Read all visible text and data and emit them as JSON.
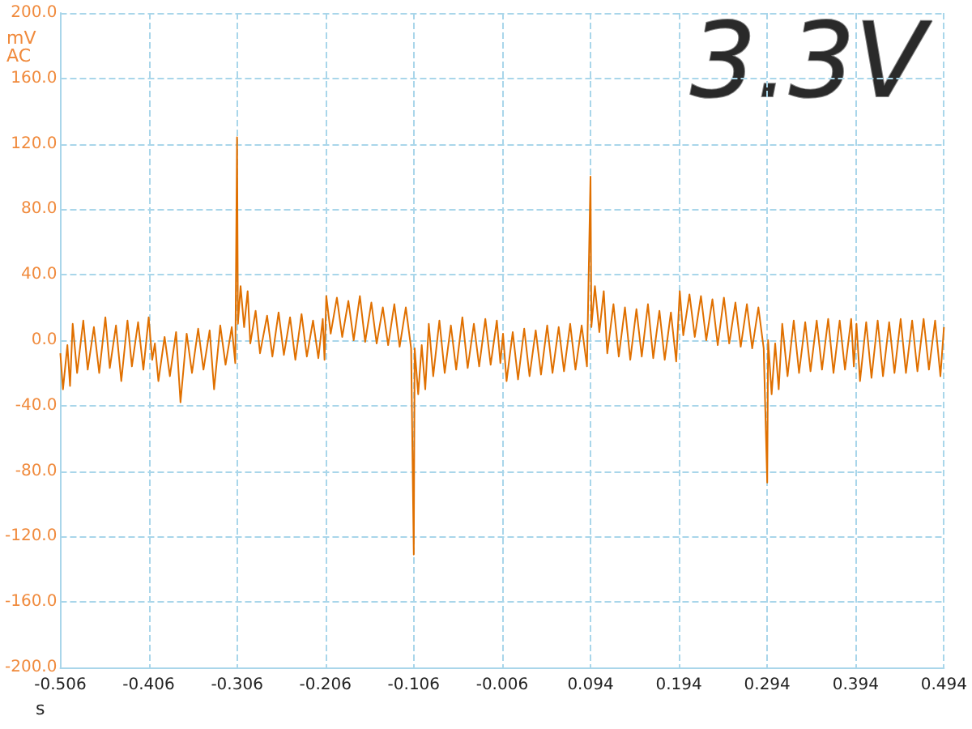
{
  "chart_data": {
    "type": "line",
    "xlabel": "s",
    "ylabel": "mV AC",
    "annotations": [
      "3.3V"
    ],
    "xlim": [
      -0.506,
      0.494
    ],
    "ylim": [
      -200,
      200
    ],
    "xticks": [
      -0.506,
      -0.406,
      -0.306,
      -0.206,
      -0.106,
      -0.006,
      0.094,
      0.194,
      0.294,
      0.394,
      0.494
    ],
    "yticks": [
      {
        "value": -200,
        "label": "-200.0"
      },
      {
        "value": -160,
        "label": "-160.0"
      },
      {
        "value": -120,
        "label": "-120.0"
      },
      {
        "value": -80,
        "label": "-80.0"
      },
      {
        "value": -40,
        "label": "-40.0"
      },
      {
        "value": 0,
        "label": "0.0"
      },
      {
        "value": 40,
        "label": "40.0"
      },
      {
        "value": 80,
        "label": "80.0"
      },
      {
        "value": 120,
        "label": "120.0"
      },
      {
        "value": 160,
        "label": "160.0"
      },
      {
        "value": 200,
        "label": "200.0"
      }
    ],
    "grid": true,
    "marker": "none",
    "line_style": "solid",
    "series": [
      {
        "color": "#e07000",
        "x": [
          -0.506,
          -0.503,
          -0.498,
          -0.495,
          -0.492,
          -0.487,
          -0.48,
          -0.475,
          -0.468,
          -0.462,
          -0.455,
          -0.45,
          -0.443,
          -0.437,
          -0.43,
          -0.425,
          -0.418,
          -0.412,
          -0.406,
          -0.402,
          -0.399,
          -0.395,
          -0.388,
          -0.382,
          -0.375,
          -0.37,
          -0.363,
          -0.357,
          -0.35,
          -0.344,
          -0.337,
          -0.332,
          -0.325,
          -0.319,
          -0.312,
          -0.308,
          -0.306,
          -0.305,
          -0.302,
          -0.298,
          -0.294,
          -0.291,
          -0.285,
          -0.28,
          -0.272,
          -0.266,
          -0.259,
          -0.253,
          -0.246,
          -0.24,
          -0.233,
          -0.227,
          -0.22,
          -0.214,
          -0.209,
          -0.207,
          -0.205,
          -0.2,
          -0.193,
          -0.187,
          -0.18,
          -0.174,
          -0.167,
          -0.161,
          -0.154,
          -0.148,
          -0.141,
          -0.135,
          -0.128,
          -0.122,
          -0.115,
          -0.109,
          -0.106,
          -0.105,
          -0.101,
          -0.097,
          -0.093,
          -0.089,
          -0.084,
          -0.077,
          -0.071,
          -0.064,
          -0.058,
          -0.051,
          -0.045,
          -0.038,
          -0.032,
          -0.025,
          -0.019,
          -0.012,
          -0.008,
          -0.005,
          -0.001,
          0.006,
          0.012,
          0.019,
          0.025,
          0.032,
          0.038,
          0.045,
          0.051,
          0.058,
          0.064,
          0.071,
          0.077,
          0.084,
          0.09,
          0.094,
          0.095,
          0.099,
          0.104,
          0.109,
          0.113,
          0.12,
          0.126,
          0.133,
          0.139,
          0.146,
          0.152,
          0.159,
          0.165,
          0.172,
          0.178,
          0.185,
          0.191,
          0.195,
          0.199,
          0.206,
          0.212,
          0.219,
          0.225,
          0.232,
          0.238,
          0.245,
          0.251,
          0.258,
          0.264,
          0.271,
          0.277,
          0.284,
          0.29,
          0.294,
          0.295,
          0.299,
          0.303,
          0.307,
          0.311,
          0.317,
          0.324,
          0.33,
          0.337,
          0.343,
          0.35,
          0.356,
          0.363,
          0.369,
          0.376,
          0.382,
          0.389,
          0.392,
          0.395,
          0.399,
          0.406,
          0.412,
          0.419,
          0.425,
          0.432,
          0.438,
          0.445,
          0.451,
          0.458,
          0.464,
          0.471,
          0.477,
          0.484,
          0.49,
          0.494
        ],
        "values": [
          -8,
          -30,
          -3,
          -28,
          10,
          -20,
          12,
          -18,
          8,
          -20,
          14,
          -17,
          9,
          -25,
          12,
          -16,
          11,
          -18,
          14,
          -12,
          -2,
          -25,
          2,
          -22,
          5,
          -38,
          4,
          -20,
          7,
          -18,
          6,
          -30,
          9,
          -15,
          8,
          -14,
          124,
          10,
          33,
          8,
          30,
          -2,
          18,
          -8,
          15,
          -10,
          17,
          -9,
          14,
          -12,
          16,
          -10,
          12,
          -11,
          13,
          -12,
          27,
          4,
          26,
          2,
          24,
          0,
          27,
          -1,
          23,
          -2,
          20,
          -3,
          22,
          -4,
          20,
          -5,
          -131,
          -5,
          -33,
          -3,
          -30,
          10,
          -22,
          12,
          -20,
          9,
          -18,
          14,
          -17,
          10,
          -16,
          13,
          -15,
          12,
          -14,
          4,
          -25,
          5,
          -24,
          7,
          -22,
          6,
          -21,
          9,
          -20,
          8,
          -19,
          10,
          -18,
          9,
          -16,
          100,
          8,
          33,
          5,
          30,
          -8,
          22,
          -10,
          20,
          -12,
          19,
          -10,
          22,
          -11,
          18,
          -12,
          17,
          -13,
          30,
          3,
          28,
          2,
          27,
          0,
          25,
          -3,
          26,
          -2,
          23,
          -4,
          22,
          -5,
          20,
          -5,
          -87,
          0,
          -33,
          -2,
          -30,
          10,
          -22,
          12,
          -20,
          11,
          -19,
          12,
          -18,
          13,
          -20,
          12,
          -18,
          13,
          -16,
          10,
          -25,
          11,
          -23,
          12,
          -22,
          11,
          -20,
          13,
          -20,
          12,
          -19,
          13,
          -18,
          12,
          -22,
          8
        ]
      }
    ]
  }
}
